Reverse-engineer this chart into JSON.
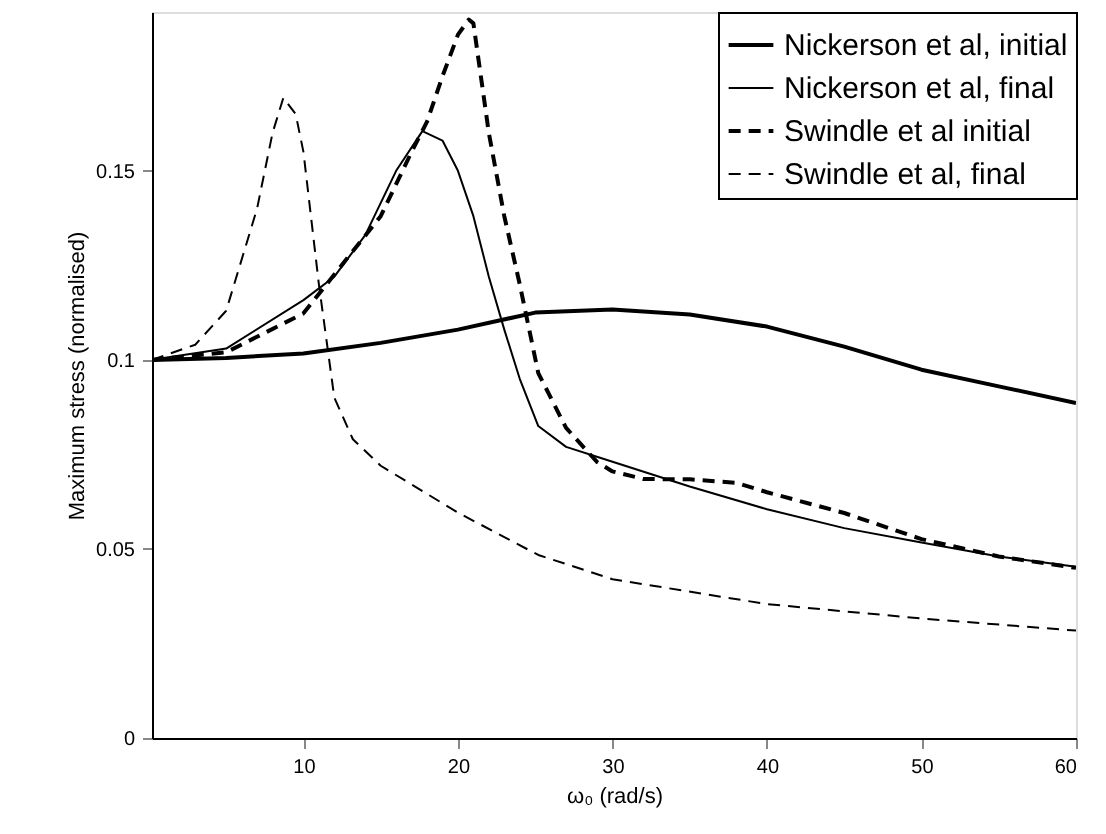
{
  "chart_data": {
    "type": "line",
    "xlabel": "ω₀ (rad/s)",
    "ylabel": "Maximum stress (normalised)",
    "xlim": [
      0.2,
      60
    ],
    "ylim": [
      0,
      0.192
    ],
    "xticks": [
      10,
      20,
      30,
      40,
      50,
      60
    ],
    "yticks": [
      0,
      0.05,
      0.1,
      0.15
    ],
    "grid": false,
    "legend": "top right",
    "series": [
      {
        "name": "Nickerson et al, initial",
        "color": "#000000",
        "line_style": "solid",
        "x": [
          0.2,
          5,
          10,
          15,
          20,
          25,
          30,
          35,
          40,
          45,
          50,
          55,
          60
        ],
        "values": [
          0.1,
          0.1005,
          0.1017,
          0.1045,
          0.108,
          0.1125,
          0.1133,
          0.112,
          0.1088,
          0.1035,
          0.0974,
          0.093,
          0.0886
        ]
      },
      {
        "name": "Nickerson et al, final",
        "color": "#000000",
        "line_style": "solid",
        "x": [
          0.2,
          5,
          10,
          12,
          14,
          16,
          17.7,
          19,
          20,
          21,
          22,
          23,
          24,
          25.2,
          27,
          29.5,
          35,
          40,
          45,
          50,
          55,
          60
        ],
        "values": [
          0.1,
          0.103,
          0.1158,
          0.122,
          0.133,
          0.15,
          0.1605,
          0.158,
          0.15,
          0.138,
          0.122,
          0.108,
          0.095,
          0.0825,
          0.077,
          0.0737,
          0.0665,
          0.0605,
          0.0555,
          0.0517,
          0.048,
          0.0453
        ]
      },
      {
        "name": "Swindle et al initial",
        "color": "#000000",
        "line_style": "dashed",
        "x": [
          0.2,
          5,
          10,
          15,
          17,
          18,
          19,
          20,
          20.7,
          21,
          22,
          23,
          24,
          25.2,
          27,
          29,
          30,
          32,
          35,
          38,
          40,
          45,
          50,
          55,
          60
        ],
        "values": [
          0.1,
          0.102,
          0.1123,
          0.138,
          0.155,
          0.163,
          0.175,
          0.186,
          0.19,
          0.189,
          0.16,
          0.138,
          0.12,
          0.0965,
          0.082,
          0.073,
          0.0705,
          0.0685,
          0.0684,
          0.0675,
          0.065,
          0.0595,
          0.0526,
          0.048,
          0.045
        ]
      },
      {
        "name": "Swindle et al, final",
        "color": "#000000",
        "line_style": "dashed",
        "x": [
          0.2,
          3,
          5,
          7,
          8,
          8.7,
          9.5,
          10,
          11,
          12,
          13.2,
          15,
          20,
          25.2,
          30,
          40,
          50,
          60
        ],
        "values": [
          0.1,
          0.104,
          0.113,
          0.14,
          0.16,
          0.1693,
          0.165,
          0.155,
          0.12,
          0.09,
          0.079,
          0.072,
          0.0596,
          0.0484,
          0.042,
          0.0354,
          0.0316,
          0.0284
        ]
      }
    ]
  }
}
